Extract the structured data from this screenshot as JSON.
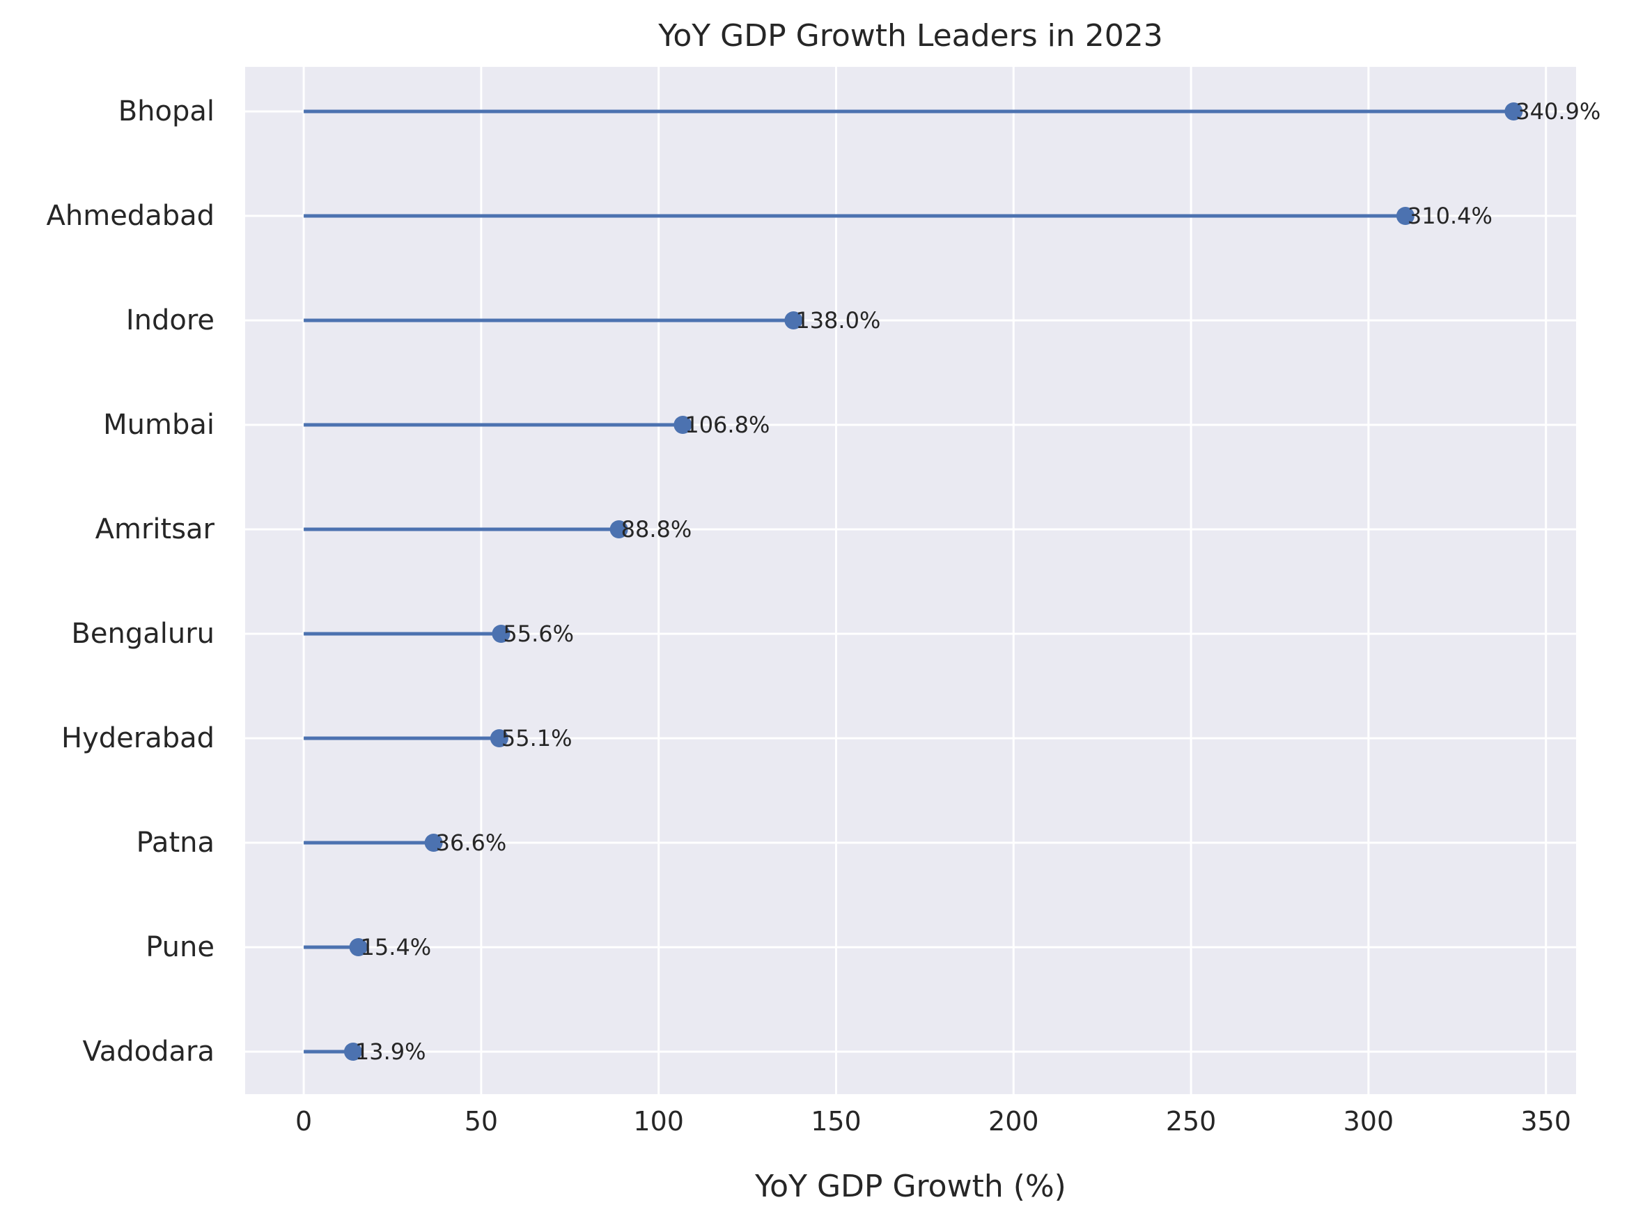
{
  "chart_data": {
    "type": "lollipop",
    "title": "YoY GDP Growth Leaders in 2023",
    "xlabel": "YoY GDP Growth (%)",
    "ylabel": "",
    "xlim": [
      -16.5,
      358.5
    ],
    "xticks": [
      0,
      50,
      100,
      150,
      200,
      250,
      300,
      350
    ],
    "xtick_labels": [
      "0",
      "50",
      "100",
      "150",
      "200",
      "250",
      "300",
      "350"
    ],
    "categories": [
      "Bhopal",
      "Ahmedabad",
      "Indore",
      "Mumbai",
      "Amritsar",
      "Bengaluru",
      "Hyderabad",
      "Patna",
      "Pune",
      "Vadodara"
    ],
    "values": [
      340.9,
      310.4,
      138.0,
      106.8,
      88.8,
      55.6,
      55.1,
      36.6,
      15.4,
      13.9
    ],
    "data_labels": [
      "340.9%",
      "310.4%",
      "138.0%",
      "106.8%",
      "88.8%",
      "55.6%",
      "55.1%",
      "36.6%",
      "15.4%",
      "13.9%"
    ],
    "grid": true,
    "colors": {
      "background": "#eaeaf2",
      "grid": "#ffffff",
      "series": "#4c72b0",
      "text": "#262626"
    }
  }
}
